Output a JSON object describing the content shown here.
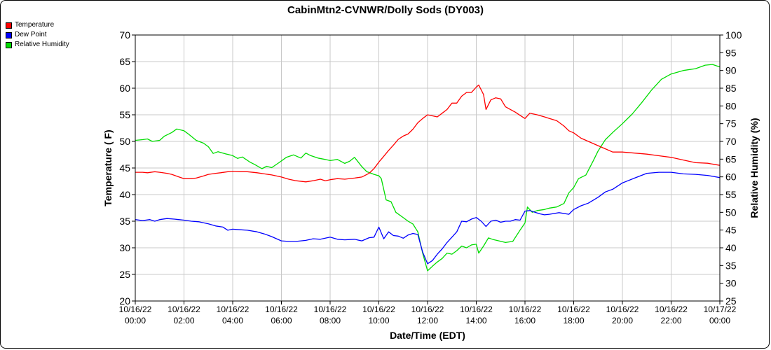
{
  "chart_data": {
    "type": "line",
    "title": "CabinMtn2-CVNWR/Dolly Sods (DY003)",
    "xlabel": "Date/Time (EDT)",
    "ylabel": "Temperature ( F)",
    "y2label": "Relative Humidity (%)",
    "ylim": [
      20,
      70
    ],
    "y2lim": [
      25,
      100
    ],
    "yticks": [
      20,
      25,
      30,
      35,
      40,
      45,
      50,
      55,
      60,
      65,
      70
    ],
    "y2ticks": [
      25,
      30,
      35,
      40,
      45,
      50,
      55,
      60,
      65,
      70,
      75,
      80,
      85,
      90,
      95,
      100
    ],
    "xlim_hours": [
      0,
      24
    ],
    "xticks": [
      {
        "hour": 0,
        "date": "10/16/22",
        "time": "00:00"
      },
      {
        "hour": 2,
        "date": "10/16/22",
        "time": "02:00"
      },
      {
        "hour": 4,
        "date": "10/16/22",
        "time": "04:00"
      },
      {
        "hour": 6,
        "date": "10/16/22",
        "time": "06:00"
      },
      {
        "hour": 8,
        "date": "10/16/22",
        "time": "08:00"
      },
      {
        "hour": 10,
        "date": "10/16/22",
        "time": "10:00"
      },
      {
        "hour": 12,
        "date": "10/16/22",
        "time": "12:00"
      },
      {
        "hour": 14,
        "date": "10/16/22",
        "time": "14:00"
      },
      {
        "hour": 16,
        "date": "10/16/22",
        "time": "16:00"
      },
      {
        "hour": 18,
        "date": "10/16/22",
        "time": "18:00"
      },
      {
        "hour": 20,
        "date": "10/16/22",
        "time": "20:00"
      },
      {
        "hour": 22,
        "date": "10/16/22",
        "time": "22:00"
      },
      {
        "hour": 24,
        "date": "10/17/22",
        "time": "00:00"
      }
    ],
    "grid": true,
    "legend_position": "top-left",
    "series": [
      {
        "name": "Temperature",
        "color": "#ff0000",
        "axis": "left",
        "points": [
          [
            0,
            44.2
          ],
          [
            0.3,
            44.2
          ],
          [
            0.5,
            44.1
          ],
          [
            0.8,
            44.3
          ],
          [
            1.0,
            44.2
          ],
          [
            1.3,
            44.0
          ],
          [
            1.5,
            43.8
          ],
          [
            1.8,
            43.3
          ],
          [
            2.0,
            43.0
          ],
          [
            2.3,
            43.0
          ],
          [
            2.5,
            43.1
          ],
          [
            2.8,
            43.5
          ],
          [
            3.0,
            43.8
          ],
          [
            3.3,
            44.0
          ],
          [
            3.5,
            44.1
          ],
          [
            3.8,
            44.3
          ],
          [
            4.0,
            44.4
          ],
          [
            4.3,
            44.3
          ],
          [
            4.6,
            44.3
          ],
          [
            5.0,
            44.1
          ],
          [
            5.3,
            43.9
          ],
          [
            5.6,
            43.7
          ],
          [
            6.0,
            43.3
          ],
          [
            6.3,
            42.9
          ],
          [
            6.6,
            42.6
          ],
          [
            7.0,
            42.4
          ],
          [
            7.3,
            42.6
          ],
          [
            7.6,
            42.9
          ],
          [
            7.8,
            42.6
          ],
          [
            8.0,
            42.8
          ],
          [
            8.3,
            43.0
          ],
          [
            8.6,
            42.9
          ],
          [
            9.0,
            43.1
          ],
          [
            9.3,
            43.3
          ],
          [
            9.6,
            44.0
          ],
          [
            9.8,
            44.9
          ],
          [
            10.0,
            46.1
          ],
          [
            10.2,
            47.2
          ],
          [
            10.4,
            48.3
          ],
          [
            10.6,
            49.3
          ],
          [
            10.8,
            50.4
          ],
          [
            11.0,
            51.0
          ],
          [
            11.2,
            51.4
          ],
          [
            11.4,
            52.3
          ],
          [
            11.6,
            53.5
          ],
          [
            11.8,
            54.3
          ],
          [
            12.0,
            55.0
          ],
          [
            12.2,
            54.8
          ],
          [
            12.4,
            54.6
          ],
          [
            12.6,
            55.3
          ],
          [
            12.8,
            56.0
          ],
          [
            13.0,
            57.2
          ],
          [
            13.2,
            57.2
          ],
          [
            13.4,
            58.5
          ],
          [
            13.6,
            59.2
          ],
          [
            13.8,
            59.2
          ],
          [
            14.0,
            60.2
          ],
          [
            14.1,
            60.6
          ],
          [
            14.3,
            58.8
          ],
          [
            14.4,
            56.0
          ],
          [
            14.6,
            57.8
          ],
          [
            14.8,
            58.2
          ],
          [
            15.0,
            58.0
          ],
          [
            15.2,
            56.5
          ],
          [
            15.4,
            56.0
          ],
          [
            15.6,
            55.5
          ],
          [
            15.8,
            54.9
          ],
          [
            16.0,
            54.3
          ],
          [
            16.2,
            55.3
          ],
          [
            16.5,
            55.0
          ],
          [
            16.8,
            54.6
          ],
          [
            17.0,
            54.3
          ],
          [
            17.3,
            53.9
          ],
          [
            17.6,
            52.9
          ],
          [
            17.8,
            52.0
          ],
          [
            18.0,
            51.6
          ],
          [
            18.3,
            50.6
          ],
          [
            18.6,
            50.0
          ],
          [
            19.0,
            49.2
          ],
          [
            19.3,
            48.6
          ],
          [
            19.6,
            48.0
          ],
          [
            20.0,
            48.0
          ],
          [
            20.5,
            47.8
          ],
          [
            21.0,
            47.6
          ],
          [
            21.5,
            47.3
          ],
          [
            22.0,
            47.0
          ],
          [
            22.5,
            46.5
          ],
          [
            23.0,
            46.0
          ],
          [
            23.5,
            45.9
          ],
          [
            24.0,
            45.5
          ]
        ]
      },
      {
        "name": "Dew Point",
        "color": "#0000ff",
        "axis": "left",
        "points": [
          [
            0,
            35.3
          ],
          [
            0.3,
            35.1
          ],
          [
            0.6,
            35.3
          ],
          [
            0.8,
            35.0
          ],
          [
            1.0,
            35.3
          ],
          [
            1.3,
            35.5
          ],
          [
            1.6,
            35.4
          ],
          [
            2.0,
            35.2
          ],
          [
            2.3,
            35.0
          ],
          [
            2.6,
            34.9
          ],
          [
            3.0,
            34.5
          ],
          [
            3.3,
            34.1
          ],
          [
            3.6,
            33.9
          ],
          [
            3.8,
            33.3
          ],
          [
            4.0,
            33.5
          ],
          [
            4.3,
            33.4
          ],
          [
            4.6,
            33.3
          ],
          [
            5.0,
            33.0
          ],
          [
            5.3,
            32.6
          ],
          [
            5.6,
            32.1
          ],
          [
            5.8,
            31.7
          ],
          [
            6.0,
            31.3
          ],
          [
            6.3,
            31.2
          ],
          [
            6.6,
            31.2
          ],
          [
            7.0,
            31.4
          ],
          [
            7.3,
            31.7
          ],
          [
            7.6,
            31.6
          ],
          [
            8.0,
            32.0
          ],
          [
            8.3,
            31.6
          ],
          [
            8.6,
            31.5
          ],
          [
            9.0,
            31.6
          ],
          [
            9.3,
            31.3
          ],
          [
            9.6,
            31.9
          ],
          [
            9.8,
            32.0
          ],
          [
            10.0,
            33.9
          ],
          [
            10.2,
            31.7
          ],
          [
            10.4,
            33.0
          ],
          [
            10.6,
            32.3
          ],
          [
            10.8,
            32.2
          ],
          [
            11.0,
            31.8
          ],
          [
            11.2,
            32.4
          ],
          [
            11.4,
            32.7
          ],
          [
            11.6,
            32.5
          ],
          [
            11.8,
            29.2
          ],
          [
            12.0,
            27.0
          ],
          [
            12.2,
            27.6
          ],
          [
            12.4,
            28.8
          ],
          [
            12.6,
            29.8
          ],
          [
            12.8,
            31.0
          ],
          [
            13.0,
            32.0
          ],
          [
            13.2,
            33.0
          ],
          [
            13.4,
            35.0
          ],
          [
            13.6,
            34.9
          ],
          [
            13.8,
            35.4
          ],
          [
            14.0,
            35.7
          ],
          [
            14.2,
            35.0
          ],
          [
            14.4,
            34.0
          ],
          [
            14.6,
            35.0
          ],
          [
            14.8,
            35.2
          ],
          [
            15.0,
            34.8
          ],
          [
            15.2,
            35.0
          ],
          [
            15.4,
            35.0
          ],
          [
            15.6,
            35.3
          ],
          [
            15.8,
            35.2
          ],
          [
            16.0,
            36.9
          ],
          [
            16.2,
            37.0
          ],
          [
            16.4,
            36.7
          ],
          [
            16.6,
            36.4
          ],
          [
            16.8,
            36.2
          ],
          [
            17.0,
            36.3
          ],
          [
            17.4,
            36.6
          ],
          [
            17.8,
            36.3
          ],
          [
            18.0,
            37.2
          ],
          [
            18.3,
            37.9
          ],
          [
            18.6,
            38.4
          ],
          [
            19.0,
            39.5
          ],
          [
            19.3,
            40.5
          ],
          [
            19.6,
            41.0
          ],
          [
            20.0,
            42.2
          ],
          [
            20.5,
            43.1
          ],
          [
            21.0,
            44.0
          ],
          [
            21.5,
            44.2
          ],
          [
            22.0,
            44.2
          ],
          [
            22.5,
            43.9
          ],
          [
            23.0,
            43.8
          ],
          [
            23.5,
            43.6
          ],
          [
            24.0,
            43.2
          ]
        ]
      },
      {
        "name": "Relative Humidity",
        "color": "#00dd00",
        "axis": "right",
        "points": [
          [
            0,
            70.3
          ],
          [
            0.3,
            70.5
          ],
          [
            0.5,
            70.7
          ],
          [
            0.7,
            70.0
          ],
          [
            1.0,
            70.3
          ],
          [
            1.2,
            71.5
          ],
          [
            1.5,
            72.5
          ],
          [
            1.7,
            73.5
          ],
          [
            2.0,
            73.0
          ],
          [
            2.2,
            72.0
          ],
          [
            2.5,
            70.3
          ],
          [
            2.8,
            69.5
          ],
          [
            3.0,
            68.5
          ],
          [
            3.2,
            66.6
          ],
          [
            3.4,
            67.1
          ],
          [
            3.7,
            66.5
          ],
          [
            4.0,
            66.0
          ],
          [
            4.2,
            65.2
          ],
          [
            4.4,
            65.6
          ],
          [
            4.7,
            64.2
          ],
          [
            4.9,
            63.5
          ],
          [
            5.2,
            62.3
          ],
          [
            5.4,
            63.0
          ],
          [
            5.6,
            62.6
          ],
          [
            5.9,
            64.0
          ],
          [
            6.2,
            65.5
          ],
          [
            6.5,
            66.2
          ],
          [
            6.8,
            65.3
          ],
          [
            7.0,
            66.7
          ],
          [
            7.2,
            66.0
          ],
          [
            7.5,
            65.3
          ],
          [
            7.8,
            64.9
          ],
          [
            8.0,
            64.6
          ],
          [
            8.3,
            64.9
          ],
          [
            8.6,
            63.8
          ],
          [
            8.8,
            64.4
          ],
          [
            9.0,
            65.5
          ],
          [
            9.3,
            62.9
          ],
          [
            9.5,
            61.5
          ],
          [
            9.8,
            60.7
          ],
          [
            10.0,
            60.3
          ],
          [
            10.1,
            59.5
          ],
          [
            10.3,
            53.5
          ],
          [
            10.5,
            53.0
          ],
          [
            10.7,
            50.0
          ],
          [
            11.0,
            48.5
          ],
          [
            11.2,
            47.5
          ],
          [
            11.4,
            46.7
          ],
          [
            11.6,
            44.5
          ],
          [
            11.8,
            38.5
          ],
          [
            12.0,
            33.5
          ],
          [
            12.2,
            34.8
          ],
          [
            12.4,
            36.0
          ],
          [
            12.6,
            37.0
          ],
          [
            12.8,
            38.5
          ],
          [
            13.0,
            38.2
          ],
          [
            13.2,
            39.2
          ],
          [
            13.4,
            40.5
          ],
          [
            13.6,
            40.0
          ],
          [
            13.8,
            40.8
          ],
          [
            14.0,
            41.0
          ],
          [
            14.1,
            38.5
          ],
          [
            14.3,
            40.5
          ],
          [
            14.5,
            42.8
          ],
          [
            14.7,
            42.3
          ],
          [
            14.9,
            42.0
          ],
          [
            15.2,
            41.5
          ],
          [
            15.5,
            41.8
          ],
          [
            15.8,
            45.0
          ],
          [
            16.0,
            47.0
          ],
          [
            16.1,
            51.5
          ],
          [
            16.3,
            50.0
          ],
          [
            16.5,
            50.5
          ],
          [
            16.8,
            50.8
          ],
          [
            17.0,
            51.2
          ],
          [
            17.3,
            51.5
          ],
          [
            17.6,
            52.5
          ],
          [
            17.8,
            55.5
          ],
          [
            18.0,
            57.0
          ],
          [
            18.2,
            59.5
          ],
          [
            18.5,
            60.5
          ],
          [
            18.8,
            64.5
          ],
          [
            19.0,
            67.3
          ],
          [
            19.3,
            70.5
          ],
          [
            19.6,
            72.5
          ],
          [
            20.0,
            75.0
          ],
          [
            20.4,
            77.7
          ],
          [
            20.8,
            81.0
          ],
          [
            21.2,
            84.5
          ],
          [
            21.6,
            87.5
          ],
          [
            22.0,
            89.0
          ],
          [
            22.5,
            90.0
          ],
          [
            23.0,
            90.5
          ],
          [
            23.4,
            91.5
          ],
          [
            23.7,
            91.7
          ],
          [
            24.0,
            91.0
          ]
        ]
      }
    ]
  }
}
